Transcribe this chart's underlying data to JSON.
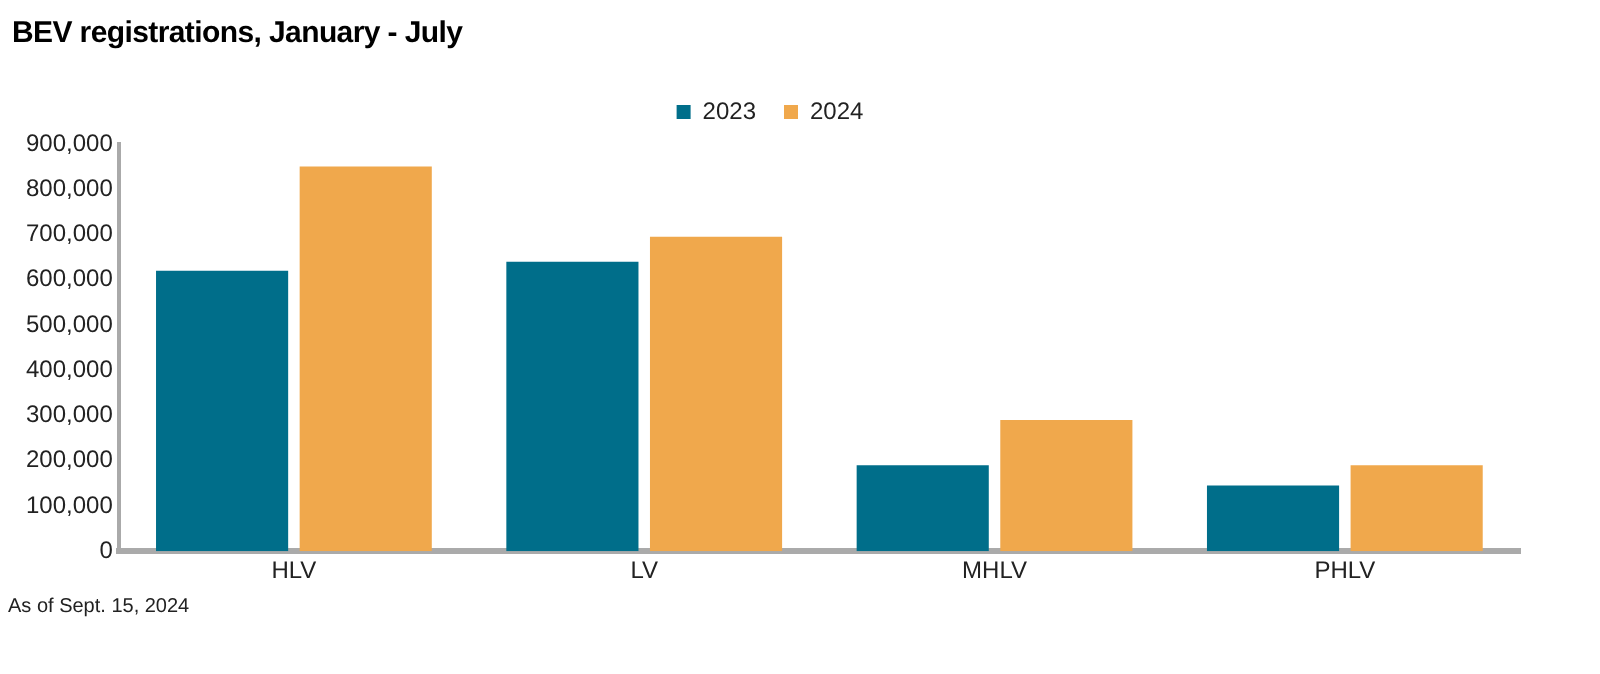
{
  "chart_data": {
    "type": "bar",
    "title": "BEV registrations, January - July",
    "categories": [
      "HLV",
      "LV",
      "MHLV",
      "PHLV"
    ],
    "series": [
      {
        "name": "2023",
        "color": "#006e8a",
        "values": [
          620000,
          640000,
          190000,
          145000
        ]
      },
      {
        "name": "2024",
        "color": "#f0a84c",
        "values": [
          850000,
          695000,
          290000,
          190000
        ]
      }
    ],
    "ylim": [
      0,
      900000
    ],
    "yticks": [
      {
        "value": 0,
        "label": "0"
      },
      {
        "value": 100000,
        "label": "100,000"
      },
      {
        "value": 200000,
        "label": "200,000"
      },
      {
        "value": 300000,
        "label": "300,000"
      },
      {
        "value": 400000,
        "label": "400,000"
      },
      {
        "value": 500000,
        "label": "500,000"
      },
      {
        "value": 600000,
        "label": "600,000"
      },
      {
        "value": 700000,
        "label": "700,000"
      },
      {
        "value": 800000,
        "label": "800,000"
      },
      {
        "value": 900000,
        "label": "900,000"
      }
    ],
    "grid": false,
    "legend": "top",
    "annotations": [
      "As of Sept. 15, 2024"
    ]
  }
}
